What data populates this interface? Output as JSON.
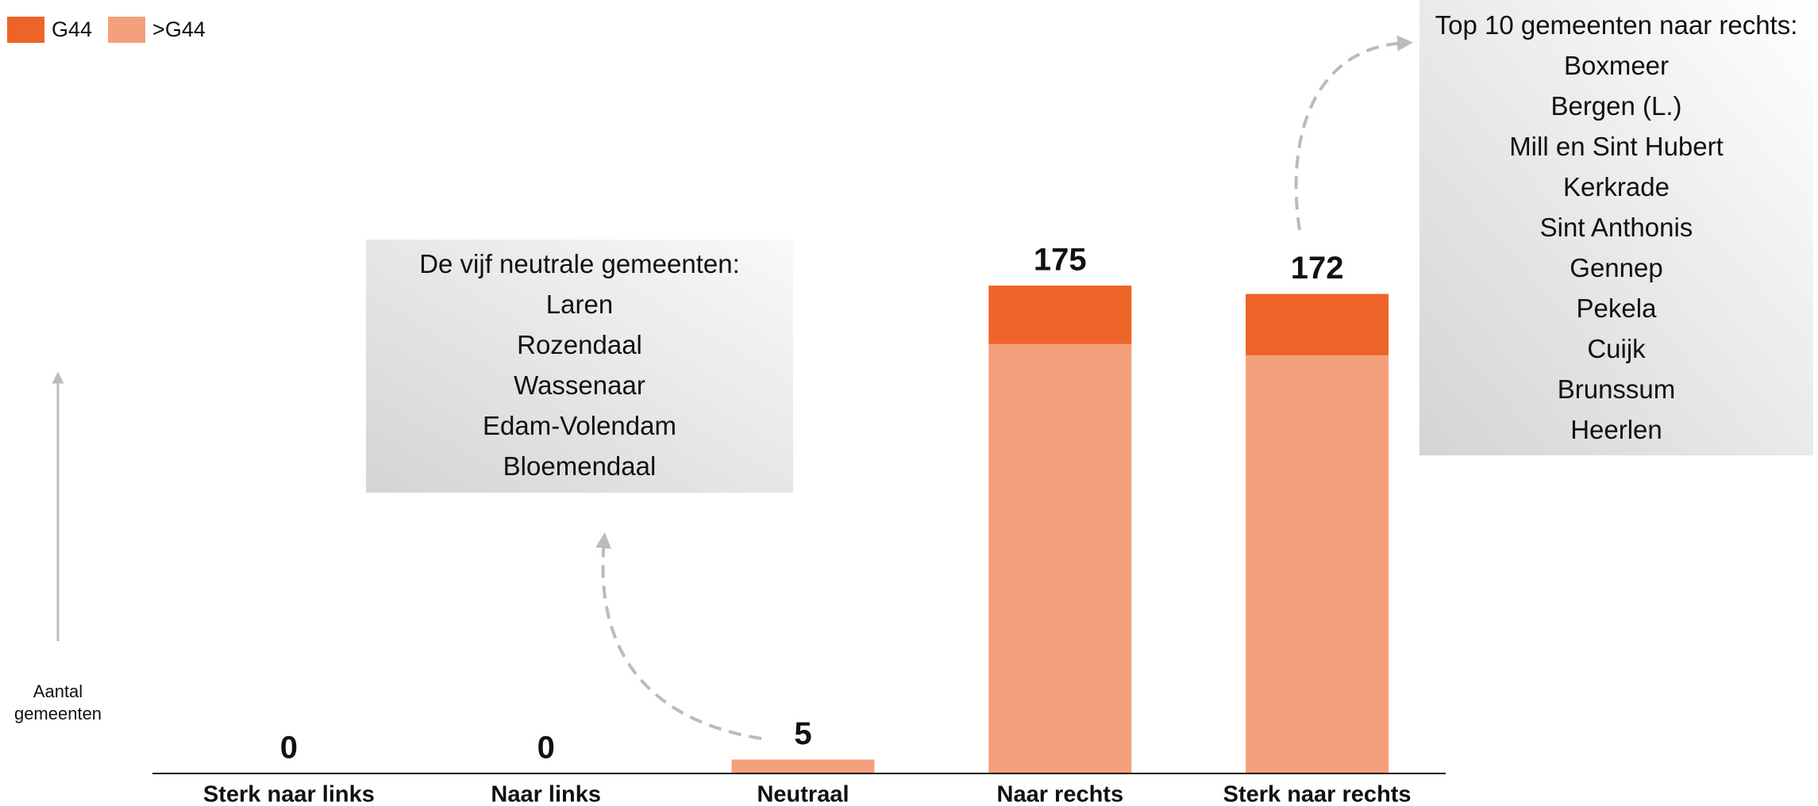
{
  "chart_data": {
    "type": "stacked_bar",
    "categories": [
      "Sterk naar links",
      "Naar links",
      "Neutraal",
      "Naar rechts",
      "Sterk naar rechts"
    ],
    "series": [
      {
        "name": ">G44",
        "color": "#f4a07c",
        "values": [
          0,
          0,
          5,
          154,
          150
        ]
      },
      {
        "name": "G44",
        "color": "#ee6328",
        "values": [
          0,
          0,
          0,
          21,
          22
        ]
      }
    ],
    "totals": [
      0,
      0,
      5,
      175,
      172
    ],
    "ylim": [
      0,
      175
    ],
    "y_label": "Aantal gemeenten",
    "legend": "top-left",
    "annotations": [
      {
        "title": "De vijf neutrale gemeenten:",
        "items": [
          "Laren",
          "Rozendaal",
          "Wassenaar",
          "Edam-Volendam",
          "Bloemendaal"
        ]
      },
      {
        "title": "Top 10 gemeenten naar rechts:",
        "items": [
          "Boxmeer",
          "Bergen (L.)",
          "Mill en Sint Hubert",
          "Kerkrade",
          "Sint Anthonis",
          "Gennep",
          "Pekela",
          "Cuijk",
          "Brunssum",
          "Heerlen"
        ]
      }
    ]
  }
}
